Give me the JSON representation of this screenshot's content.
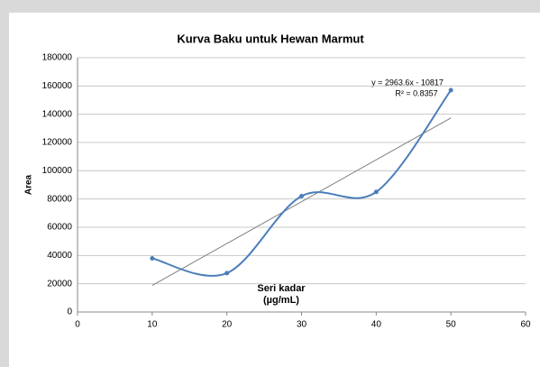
{
  "chart_data": {
    "type": "scatter",
    "title": "Kurva Baku untuk Hewan Marmut",
    "y_label": "Area",
    "x_label": [
      "Seri kadar",
      "(µg/mL)"
    ],
    "series": [
      {
        "name": "Area",
        "color": "#4a7ebb",
        "smooth": true,
        "x": [
          10,
          20,
          30,
          40,
          50
        ],
        "values": [
          38000,
          27500,
          82000,
          85000,
          157000
        ]
      }
    ],
    "trendline": {
      "slope": 2963.6,
      "intercept": -10817,
      "color": "#7f7f7f",
      "equation": "y = 2963.6x - 10817",
      "r_squared": "R² = 0.8357"
    },
    "xlim": [
      0,
      60
    ],
    "xticks": [
      0,
      10,
      20,
      30,
      40,
      50,
      60
    ],
    "ylim": [
      0,
      180000
    ],
    "yticks": [
      0,
      20000,
      40000,
      60000,
      80000,
      100000,
      120000,
      140000,
      160000,
      180000
    ],
    "grid": true
  }
}
